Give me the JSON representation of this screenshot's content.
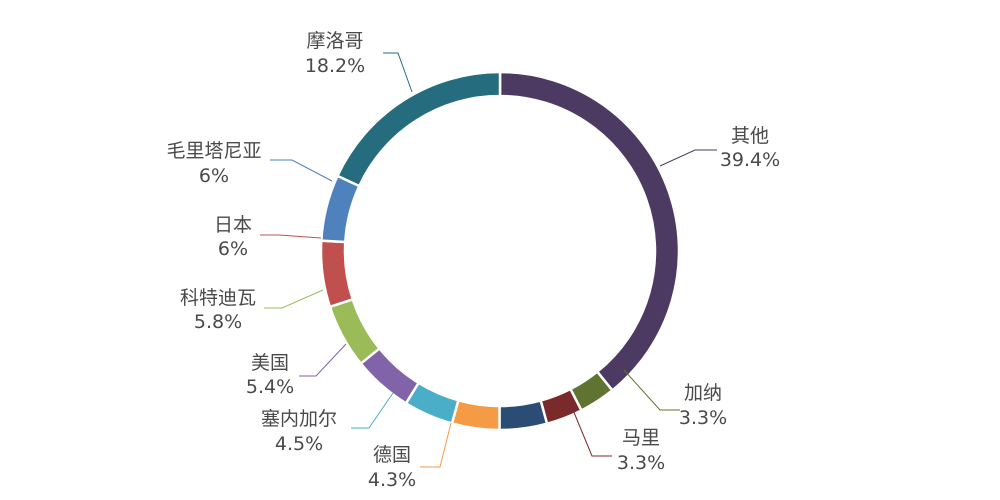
{
  "chart_data": {
    "type": "pie",
    "variant": "donut",
    "title": "",
    "legend": "none",
    "slices": [
      {
        "label": "其他",
        "value": 39.4,
        "value_label": "39.4%",
        "color": "#4d3a63"
      },
      {
        "label": "加纳",
        "value": 3.3,
        "value_label": "3.3%",
        "color": "#5e7430"
      },
      {
        "label": "马里",
        "value": 3.3,
        "value_label": "3.3%",
        "color": "#7a2a2a"
      },
      {
        "label": "",
        "value": 4.3,
        "value_label": "",
        "color": "#2b4c75"
      },
      {
        "label": "德国",
        "value": 4.3,
        "value_label": "4.3%",
        "color": "#f59a45"
      },
      {
        "label": "塞内加尔",
        "value": 4.5,
        "value_label": "4.5%",
        "color": "#4aaec8"
      },
      {
        "label": "美国",
        "value": 5.4,
        "value_label": "5.4%",
        "color": "#8063a8"
      },
      {
        "label": "科特迪瓦",
        "value": 5.8,
        "value_label": "5.8%",
        "color": "#9bbb59"
      },
      {
        "label": "日本",
        "value": 6,
        "value_label": "6%",
        "color": "#c0504d"
      },
      {
        "label": "毛里塔尼亚",
        "value": 6,
        "value_label": "6%",
        "color": "#4f81bd"
      },
      {
        "label": "摩洛哥",
        "value": 18.2,
        "value_label": "18.2%",
        "color": "#246c7e"
      }
    ]
  }
}
